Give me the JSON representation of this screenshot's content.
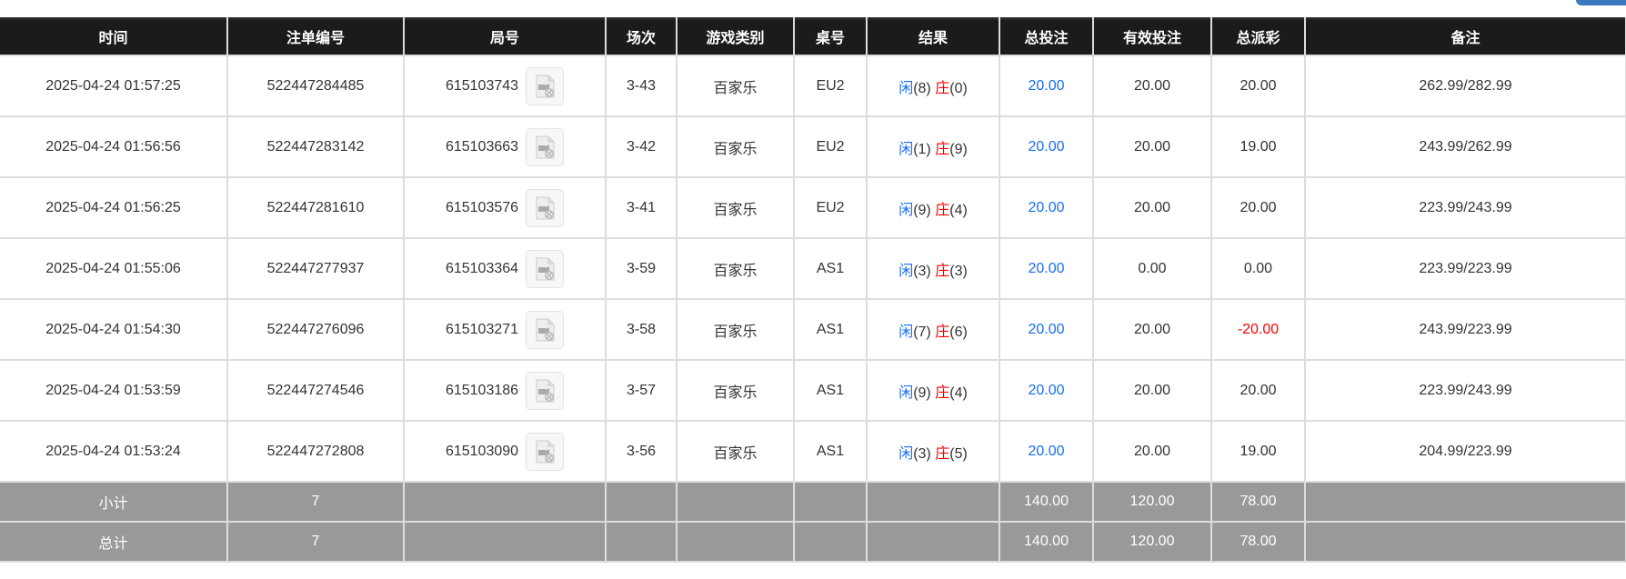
{
  "columns": [
    "时间",
    "注单编号",
    "局号",
    "场次",
    "游戏类别",
    "桌号",
    "结果",
    "总投注",
    "有效投注",
    "总派彩",
    "备注"
  ],
  "rows": [
    {
      "time": "2025-04-24 01:57:25",
      "bet_id": "522447284485",
      "round": "615103743",
      "shoe": "3-43",
      "game": "百家乐",
      "table": "EU2",
      "player_label": "闲",
      "player": "(8)",
      "banker_label": "庄",
      "banker": "(0)",
      "total_bet": "20.00",
      "valid_bet": "20.00",
      "payout": "20.00",
      "payout_negative": false,
      "note": "262.99/282.99"
    },
    {
      "time": "2025-04-24 01:56:56",
      "bet_id": "522447283142",
      "round": "615103663",
      "shoe": "3-42",
      "game": "百家乐",
      "table": "EU2",
      "player_label": "闲",
      "player": "(1)",
      "banker_label": "庄",
      "banker": "(9)",
      "total_bet": "20.00",
      "valid_bet": "20.00",
      "payout": "19.00",
      "payout_negative": false,
      "note": "243.99/262.99"
    },
    {
      "time": "2025-04-24 01:56:25",
      "bet_id": "522447281610",
      "round": "615103576",
      "shoe": "3-41",
      "game": "百家乐",
      "table": "EU2",
      "player_label": "闲",
      "player": "(9)",
      "banker_label": "庄",
      "banker": "(4)",
      "total_bet": "20.00",
      "valid_bet": "20.00",
      "payout": "20.00",
      "payout_negative": false,
      "note": "223.99/243.99"
    },
    {
      "time": "2025-04-24 01:55:06",
      "bet_id": "522447277937",
      "round": "615103364",
      "shoe": "3-59",
      "game": "百家乐",
      "table": "AS1",
      "player_label": "闲",
      "player": "(3)",
      "banker_label": "庄",
      "banker": "(3)",
      "total_bet": "20.00",
      "valid_bet": "0.00",
      "payout": "0.00",
      "payout_negative": false,
      "note": "223.99/223.99"
    },
    {
      "time": "2025-04-24 01:54:30",
      "bet_id": "522447276096",
      "round": "615103271",
      "shoe": "3-58",
      "game": "百家乐",
      "table": "AS1",
      "player_label": "闲",
      "player": "(7)",
      "banker_label": "庄",
      "banker": "(6)",
      "total_bet": "20.00",
      "valid_bet": "20.00",
      "payout": "-20.00",
      "payout_negative": true,
      "note": "243.99/223.99"
    },
    {
      "time": "2025-04-24 01:53:59",
      "bet_id": "522447274546",
      "round": "615103186",
      "shoe": "3-57",
      "game": "百家乐",
      "table": "AS1",
      "player_label": "闲",
      "player": "(9)",
      "banker_label": "庄",
      "banker": "(4)",
      "total_bet": "20.00",
      "valid_bet": "20.00",
      "payout": "20.00",
      "payout_negative": false,
      "note": "223.99/243.99"
    },
    {
      "time": "2025-04-24 01:53:24",
      "bet_id": "522447272808",
      "round": "615103090",
      "shoe": "3-56",
      "game": "百家乐",
      "table": "AS1",
      "player_label": "闲",
      "player": "(3)",
      "banker_label": "庄",
      "banker": "(5)",
      "total_bet": "20.00",
      "valid_bet": "20.00",
      "payout": "19.00",
      "payout_negative": false,
      "note": "204.99/223.99"
    }
  ],
  "subtotal": {
    "label": "小计",
    "count": "7",
    "total_bet": "140.00",
    "valid_bet": "120.00",
    "payout": "78.00"
  },
  "total": {
    "label": "总计",
    "count": "7",
    "total_bet": "140.00",
    "valid_bet": "120.00",
    "payout": "78.00"
  },
  "colors": {
    "header_bg": "#1b1b1b",
    "summary_bg": "#999999",
    "player": "#1a6df0",
    "banker": "#ff0000",
    "negative": "#ff0000",
    "button": "#3a7bc0"
  },
  "icons": {
    "replay": "video-file-icon"
  }
}
